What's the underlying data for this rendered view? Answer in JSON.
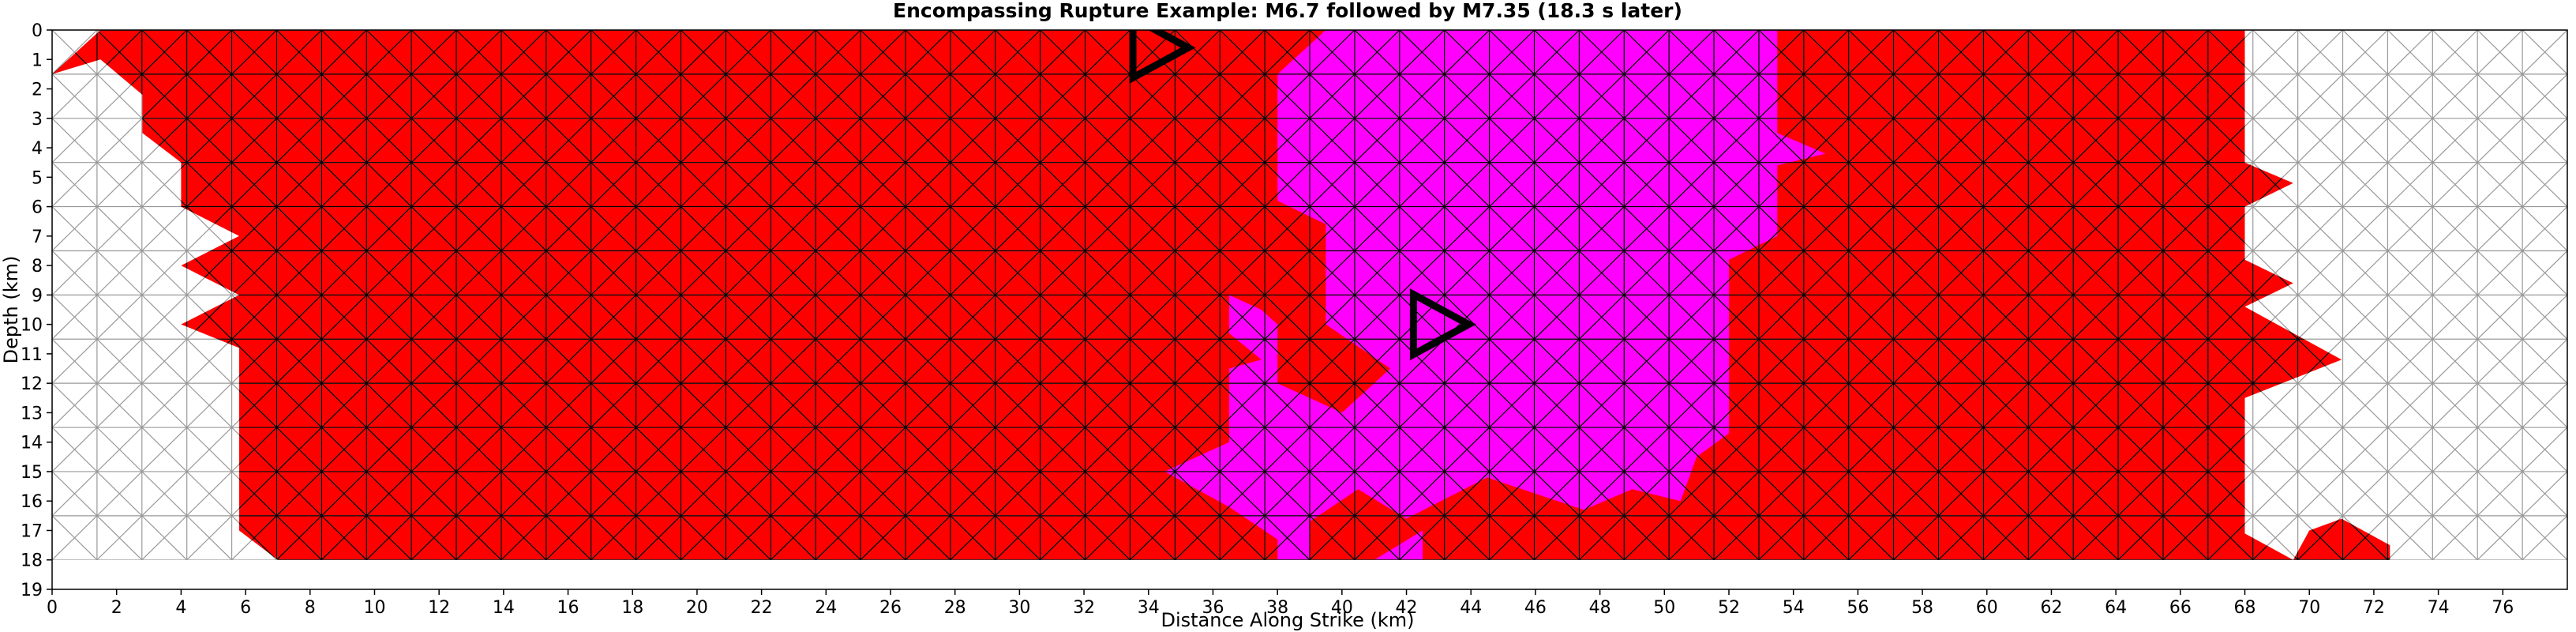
{
  "chart_data": {
    "type": "heatmap",
    "title": "Encompassing Rupture Example: M6.7 followed by M7.35 (18.3 s later)",
    "xlabel": "Distance Along Strike (km)",
    "ylabel": "Depth (km)",
    "xlim": [
      0,
      78
    ],
    "ylim": [
      0,
      19
    ],
    "y_inverted": true,
    "xticks": [
      0,
      2,
      4,
      6,
      8,
      10,
      12,
      14,
      16,
      18,
      20,
      22,
      24,
      26,
      28,
      30,
      32,
      34,
      36,
      38,
      40,
      42,
      44,
      46,
      48,
      50,
      52,
      54,
      56,
      58,
      60,
      62,
      64,
      66,
      68,
      70,
      72,
      74,
      76
    ],
    "yticks": [
      0,
      1,
      2,
      3,
      4,
      5,
      6,
      7,
      8,
      9,
      10,
      11,
      12,
      13,
      14,
      15,
      16,
      17,
      18,
      19
    ],
    "mesh": {
      "type": "triangular",
      "x_max": 78,
      "depth_max": 18,
      "depth_rows": 12,
      "columns": 56
    },
    "colors": {
      "m735_rupture": "#ff0000",
      "m67_rupture": "#ff00ff",
      "unruptured": "#ffffff",
      "mesh_line_ruptured": "#000000",
      "mesh_line_unruptured": "#999999",
      "hypocenter": "#000000"
    },
    "regions": {
      "m735_rupture": [
        [
          0,
          1.5
        ],
        [
          1.5,
          0
        ],
        [
          68,
          0
        ],
        [
          68,
          4.5
        ],
        [
          69.5,
          5.2
        ],
        [
          68,
          6
        ],
        [
          68,
          7.8
        ],
        [
          69.5,
          8.6
        ],
        [
          68,
          9.4
        ],
        [
          71,
          11.2
        ],
        [
          68,
          12.5
        ],
        [
          68,
          17.1
        ],
        [
          69.5,
          18
        ],
        [
          70,
          17
        ],
        [
          71,
          16.6
        ],
        [
          72.5,
          17.5
        ],
        [
          72.5,
          18
        ],
        [
          7,
          18
        ],
        [
          5.8,
          17
        ],
        [
          5.8,
          10.8
        ],
        [
          4,
          10
        ],
        [
          5.8,
          9
        ],
        [
          4,
          8
        ],
        [
          5.8,
          7
        ],
        [
          4,
          6
        ],
        [
          4,
          4.5
        ],
        [
          2.8,
          3.5
        ],
        [
          2.8,
          2.2
        ],
        [
          1.5,
          1
        ]
      ],
      "m67_rupture": [
        [
          38,
          1.5
        ],
        [
          39.5,
          0
        ],
        [
          53.5,
          0
        ],
        [
          53.5,
          3.5
        ],
        [
          55,
          4.2
        ],
        [
          53.5,
          4.6
        ],
        [
          53.5,
          7
        ],
        [
          52,
          7.8
        ],
        [
          52,
          13.7
        ],
        [
          51,
          14.5
        ],
        [
          50.5,
          16
        ],
        [
          49,
          15.6
        ],
        [
          47.5,
          16.3
        ],
        [
          44.5,
          15.2
        ],
        [
          42,
          16.6
        ],
        [
          40.5,
          15.6
        ],
        [
          39,
          16.7
        ],
        [
          39,
          18
        ],
        [
          38,
          18
        ],
        [
          38,
          17.3
        ],
        [
          36.5,
          16.2
        ],
        [
          34.5,
          15
        ],
        [
          36.5,
          14
        ],
        [
          36.5,
          11.5
        ],
        [
          37.5,
          11.2
        ],
        [
          36.5,
          10.3
        ],
        [
          36.5,
          9
        ],
        [
          37.5,
          9.5
        ],
        [
          38,
          10
        ],
        [
          38,
          12
        ],
        [
          40,
          13
        ],
        [
          41.5,
          11.5
        ],
        [
          39.5,
          10
        ],
        [
          39.5,
          6.6
        ],
        [
          38,
          5.8
        ]
      ],
      "m67_patch": [
        [
          41,
          18
        ],
        [
          42.5,
          17
        ],
        [
          42.5,
          18
        ]
      ]
    },
    "hypocenters": [
      {
        "event": "M6.7",
        "x": 34.3,
        "depth": 0.6
      },
      {
        "event": "M7.35",
        "x": 43,
        "depth": 10
      }
    ]
  }
}
